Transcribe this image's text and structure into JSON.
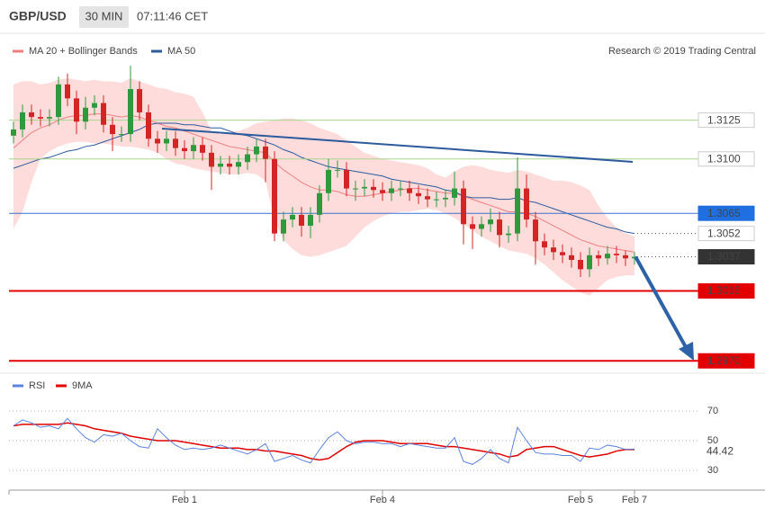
{
  "chart_data": [
    {
      "type": "candlestick",
      "title": "GBP/USD",
      "timeframe": "30 MIN",
      "time": "07:11:46 CET",
      "source": "Research © 2019 Trading Central",
      "categories": [
        null,
        null,
        null,
        null,
        null,
        null,
        null,
        null,
        null,
        null,
        null,
        null,
        null,
        null,
        null,
        null,
        null,
        null,
        null,
        "Feb 1",
        null,
        null,
        null,
        null,
        null,
        null,
        null,
        null,
        null,
        null,
        null,
        null,
        null,
        null,
        null,
        null,
        null,
        null,
        null,
        null,
        null,
        "Feb 4",
        null,
        null,
        null,
        null,
        null,
        null,
        null,
        null,
        null,
        null,
        null,
        null,
        null,
        null,
        null,
        null,
        null,
        null,
        null,
        null,
        null,
        "Feb 5",
        null,
        null,
        null,
        null,
        null,
        "Feb 7"
      ],
      "open": [
        1.3115,
        1.3119,
        1.313,
        1.3127,
        1.3126,
        1.3127,
        1.3148,
        1.3139,
        1.3124,
        1.3133,
        1.3136,
        1.3122,
        1.3116,
        1.3116,
        1.3145,
        1.313,
        1.3113,
        1.311,
        1.3113,
        1.3107,
        1.3105,
        1.3109,
        1.3104,
        1.3095,
        1.3097,
        1.3095,
        1.3098,
        1.3103,
        1.3108,
        1.31,
        1.3052,
        1.3061,
        1.3064,
        1.3057,
        1.3064,
        1.3078,
        1.3093,
        1.3093,
        1.3081,
        1.3081,
        1.3082,
        1.308,
        1.3078,
        1.3081,
        1.3081,
        1.3078,
        1.3076,
        1.3074,
        1.3074,
        1.3075,
        1.3081,
        1.3058,
        1.3055,
        1.3058,
        1.3061,
        1.3051,
        1.3052,
        1.3081,
        1.3061,
        1.3047,
        1.3043,
        1.304,
        1.3038,
        1.3035,
        1.3029,
        1.3038,
        1.3036,
        1.3039,
        1.3038,
        1.3036
      ],
      "high": [
        1.3124,
        1.3135,
        1.3135,
        1.3132,
        1.3132,
        1.3153,
        1.3155,
        1.3144,
        1.314,
        1.3141,
        1.3141,
        1.3127,
        1.3121,
        1.316,
        1.315,
        1.3135,
        1.3118,
        1.3118,
        1.3118,
        1.3112,
        1.3114,
        1.3114,
        1.3109,
        1.3102,
        1.3102,
        1.3103,
        1.3108,
        1.3113,
        1.3113,
        1.3105,
        1.3066,
        1.3069,
        1.3069,
        1.3069,
        1.3083,
        1.31,
        1.3099,
        1.3098,
        1.3086,
        1.3087,
        1.3087,
        1.3085,
        1.3086,
        1.3086,
        1.3086,
        1.3083,
        1.3081,
        1.3079,
        1.308,
        1.3092,
        1.3086,
        1.3063,
        1.3063,
        1.3068,
        1.3066,
        1.3057,
        1.3101,
        1.309,
        1.3066,
        1.3052,
        1.3048,
        1.3045,
        1.3043,
        1.304,
        1.3043,
        1.3041,
        1.3044,
        1.3044,
        1.3041,
        1.304
      ],
      "low": [
        1.311,
        1.3114,
        1.3122,
        1.3121,
        1.3121,
        1.3122,
        1.3134,
        1.3116,
        1.3119,
        1.3128,
        1.3117,
        1.3105,
        1.3111,
        1.3111,
        1.3125,
        1.3108,
        1.3104,
        1.3105,
        1.3102,
        1.31,
        1.31,
        1.3099,
        1.308,
        1.309,
        1.309,
        1.309,
        1.3093,
        1.3098,
        1.3085,
        1.3047,
        1.3047,
        1.3056,
        1.305,
        1.3049,
        1.3059,
        1.3073,
        1.3088,
        1.3076,
        1.3073,
        1.3076,
        1.3075,
        1.3073,
        1.3073,
        1.3076,
        1.3073,
        1.3071,
        1.3069,
        1.3069,
        1.3069,
        1.307,
        1.3045,
        1.3042,
        1.305,
        1.3053,
        1.3043,
        1.3046,
        1.3047,
        1.3056,
        1.3032,
        1.3038,
        1.3035,
        1.3033,
        1.303,
        1.3024,
        1.3024,
        1.3031,
        1.3032,
        1.3033,
        1.3031,
        1.3032
      ],
      "close": [
        1.3119,
        1.313,
        1.3127,
        1.3126,
        1.3127,
        1.3148,
        1.3139,
        1.3124,
        1.3133,
        1.3136,
        1.3122,
        1.3116,
        1.3116,
        1.3145,
        1.313,
        1.3113,
        1.311,
        1.3113,
        1.3107,
        1.3105,
        1.3109,
        1.3104,
        1.3095,
        1.3097,
        1.3095,
        1.3098,
        1.3103,
        1.3108,
        1.31,
        1.3052,
        1.3061,
        1.3064,
        1.3057,
        1.3064,
        1.3078,
        1.3093,
        1.3093,
        1.3081,
        1.3081,
        1.3082,
        1.308,
        1.3078,
        1.3081,
        1.3081,
        1.3078,
        1.3076,
        1.3074,
        1.3074,
        1.3075,
        1.3081,
        1.3058,
        1.3055,
        1.3058,
        1.3061,
        1.3051,
        1.3052,
        1.3081,
        1.3061,
        1.3047,
        1.3043,
        1.304,
        1.3038,
        1.3035,
        1.3029,
        1.3038,
        1.3036,
        1.3039,
        1.3038,
        1.3036,
        1.3037
      ],
      "up_color": "#2e9a3c",
      "down_color": "#d42424",
      "series": [
        {
          "name": "MA 20 + Bollinger Bands",
          "color": "#f07f7f",
          "band_color": "#ffdcdc",
          "values": [
            1.3107,
            1.3112,
            1.3117,
            1.312,
            1.3122,
            1.3125,
            1.3127,
            1.3128,
            1.3128,
            1.3129,
            1.3129,
            1.3128,
            1.3127,
            1.3128,
            1.3127,
            1.3125,
            1.3123,
            1.3121,
            1.312,
            1.3118,
            1.3116,
            1.3114,
            1.3112,
            1.311,
            1.3108,
            1.3107,
            1.3106,
            1.3105,
            1.3104,
            1.3098,
            1.3093,
            1.3089,
            1.3085,
            1.3082,
            1.308,
            1.308,
            1.3079,
            1.3077,
            1.3076,
            1.3076,
            1.3077,
            1.3078,
            1.3079,
            1.308,
            1.3081,
            1.3081,
            1.308,
            1.3079,
            1.3078,
            1.3078,
            1.3076,
            1.3074,
            1.3072,
            1.307,
            1.3068,
            1.3066,
            1.3066,
            1.3065,
            1.3063,
            1.306,
            1.3057,
            1.3054,
            1.3051,
            1.3048,
            1.3046,
            1.3044,
            1.3043,
            1.3042,
            1.3041,
            1.304
          ],
          "upper": [
            1.3148,
            1.315,
            1.315,
            1.3148,
            1.3149,
            1.3151,
            1.3152,
            1.3151,
            1.315,
            1.3151,
            1.315,
            1.315,
            1.3149,
            1.3152,
            1.315,
            1.3148,
            1.3146,
            1.3145,
            1.3143,
            1.3142,
            1.314,
            1.313,
            1.3118,
            1.3116,
            1.3117,
            1.3118,
            1.312,
            1.3123,
            1.3124,
            1.3125,
            1.3126,
            1.3126,
            1.3125,
            1.3123,
            1.312,
            1.3118,
            1.3116,
            1.3112,
            1.3108,
            1.3104,
            1.3102,
            1.31,
            1.3099,
            1.3098,
            1.3097,
            1.3096,
            1.3094,
            1.309,
            1.3088,
            1.3092,
            1.3095,
            1.3096,
            1.3095,
            1.3093,
            1.3092,
            1.3091,
            1.3093,
            1.3092,
            1.309,
            1.3088,
            1.3086,
            1.3086,
            1.3085,
            1.3083,
            1.308,
            1.307,
            1.3062,
            1.3056,
            1.3052,
            1.305
          ],
          "lower": [
            1.3055,
            1.3066,
            1.3085,
            1.31,
            1.3105,
            1.3108,
            1.311,
            1.3111,
            1.3111,
            1.311,
            1.311,
            1.3109,
            1.3108,
            1.3108,
            1.3107,
            1.3106,
            1.3104,
            1.31,
            1.3097,
            1.3096,
            1.3094,
            1.3093,
            1.3092,
            1.3091,
            1.309,
            1.309,
            1.3091,
            1.309,
            1.3086,
            1.306,
            1.3048,
            1.3042,
            1.3038,
            1.3037,
            1.3038,
            1.304,
            1.3042,
            1.3044,
            1.305,
            1.3056,
            1.306,
            1.3063,
            1.3065,
            1.3066,
            1.3066,
            1.3067,
            1.3068,
            1.3067,
            1.3065,
            1.3062,
            1.3058,
            1.3054,
            1.305,
            1.3047,
            1.3044,
            1.3041,
            1.304,
            1.3039,
            1.3036,
            1.3032,
            1.3027,
            1.3022,
            1.3018,
            1.3014,
            1.3012,
            1.3017,
            1.3022,
            1.3024,
            1.3025,
            1.3025
          ]
        },
        {
          "name": "MA 50",
          "color": "#2d5a9c",
          "values": [
            1.3094,
            1.3096,
            1.3098,
            1.31,
            1.3101,
            1.3103,
            1.3105,
            1.3106,
            1.3108,
            1.3109,
            1.3111,
            1.3113,
            1.3115,
            1.3117,
            1.3119,
            1.3122,
            1.3123,
            1.3123,
            1.3123,
            1.3122,
            1.3122,
            1.3121,
            1.312,
            1.312,
            1.3118,
            1.3116,
            1.3115,
            1.3113,
            1.3111,
            1.3109,
            1.3106,
            1.3104,
            1.3101,
            1.3099,
            1.3097,
            1.3095,
            1.3094,
            1.3093,
            1.3092,
            1.3091,
            1.309,
            1.3089,
            1.3087,
            1.3086,
            1.3085,
            1.3084,
            1.3083,
            1.3082,
            1.308,
            1.3079,
            1.3076,
            1.3075,
            1.3075,
            1.3075,
            1.3074,
            1.3074,
            1.3075,
            1.3073,
            1.3072,
            1.307,
            1.3068,
            1.3066,
            1.3064,
            1.3062,
            1.306,
            1.3058,
            1.3056,
            1.3055,
            1.3053,
            1.3052
          ]
        }
      ],
      "ylim": [
        1.2965,
        1.3165
      ],
      "levels": [
        {
          "value": 1.3125,
          "style": "line",
          "color": "#a8d58c",
          "box": "#ffffff",
          "text_color": "#333333"
        },
        {
          "value": 1.31,
          "label": "1.3100",
          "style": "line",
          "color": "#a8d58c",
          "box": "#ffffff",
          "text_color": "#333333"
        },
        {
          "value": 1.3065,
          "style": "line",
          "color": "#3a73d0",
          "box": "#1f6fe0",
          "text_color": "#ffffff"
        },
        {
          "value": 1.3052,
          "style": "dotted",
          "color": "#555555",
          "box": "#ffffff",
          "text_color": "#333333"
        },
        {
          "value": 1.3037,
          "style": "dotted",
          "color": "#555555",
          "box": "#333333",
          "text_color": "#ffffff"
        },
        {
          "value": 1.3015,
          "style": "line",
          "color": "#e30000",
          "box": "#e30000",
          "text_color": "#ffffff"
        },
        {
          "value": 1.297,
          "label": "1.2970",
          "style": "line",
          "color": "#e30000",
          "box": "#e30000",
          "text_color": "#ffffff"
        }
      ]
    },
    {
      "type": "line",
      "series": [
        {
          "name": "RSI",
          "color": "#5b82dc",
          "values": [
            60,
            64,
            62,
            59,
            60,
            58,
            65,
            58,
            52,
            49,
            54,
            53,
            55,
            50,
            46,
            45,
            58,
            52,
            47,
            44,
            45,
            44,
            45,
            47,
            45,
            43,
            41,
            44,
            48,
            36,
            38,
            40,
            37,
            35,
            44,
            52,
            56,
            50,
            48,
            49,
            49,
            48,
            48,
            46,
            48,
            47,
            46,
            45,
            45,
            52,
            36,
            34,
            38,
            44,
            38,
            35,
            59,
            50,
            42,
            41,
            41,
            40,
            40,
            36,
            45,
            44,
            47,
            46,
            44,
            44.42
          ]
        },
        {
          "name": "9MA",
          "color": "#e00000",
          "values": [
            60,
            61,
            61,
            61,
            61,
            61,
            62,
            61,
            60,
            58,
            57,
            56,
            55,
            53,
            52,
            51,
            50,
            50,
            50,
            49,
            48,
            47,
            46,
            45,
            45,
            45,
            44,
            44,
            43,
            43,
            42,
            41,
            40,
            38,
            37,
            38,
            42,
            46,
            49,
            50,
            50,
            50,
            49,
            48,
            48,
            48,
            48,
            47,
            46,
            46,
            45,
            44,
            43,
            42,
            41,
            39,
            40,
            44,
            45,
            46,
            46,
            44,
            42,
            40,
            39,
            40,
            41,
            43,
            44,
            44
          ]
        }
      ],
      "ylim": [
        20,
        90
      ],
      "yticks": [
        30,
        50,
        70
      ],
      "grid": true
    }
  ]
}
